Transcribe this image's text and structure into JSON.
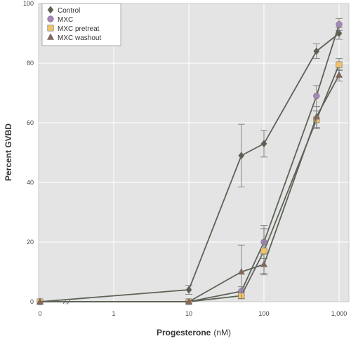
{
  "chart_data": {
    "type": "line",
    "xlabel": "Progesterone",
    "xlabel_unit": "(nM)",
    "ylabel": "Percent GVBD",
    "x_scale": "log",
    "x_axis_break": true,
    "xlim": [
      1,
      1000
    ],
    "ylim": [
      0,
      100
    ],
    "grid": true,
    "legend_position": "top-left",
    "x_ticks": [
      {
        "value": 0,
        "label": "0"
      },
      {
        "value": 1,
        "label": "1"
      },
      {
        "value": 10,
        "label": "10"
      },
      {
        "value": 100,
        "label": "100"
      },
      {
        "value": 1000,
        "label": "1,000"
      }
    ],
    "y_ticks": [
      {
        "value": 0,
        "label": "0"
      },
      {
        "value": 20,
        "label": "20"
      },
      {
        "value": 40,
        "label": "40"
      },
      {
        "value": 60,
        "label": "60"
      },
      {
        "value": 80,
        "label": "80"
      },
      {
        "value": 100,
        "label": "100"
      }
    ],
    "series": [
      {
        "name": "Control",
        "marker": "diamond",
        "color": "#5a6152",
        "points": [
          {
            "x": 0,
            "y": 0
          },
          {
            "x": 10,
            "y": 4,
            "err": 1.5
          },
          {
            "x": 50,
            "y": 49,
            "err": 10.5
          },
          {
            "x": 100,
            "y": 53,
            "err": 4.5
          },
          {
            "x": 500,
            "y": 84,
            "err": 2.5
          },
          {
            "x": 1000,
            "y": 90,
            "err": 2
          }
        ]
      },
      {
        "name": "MXC",
        "marker": "circle",
        "color": "#a587bb",
        "points": [
          {
            "x": 0,
            "y": 0
          },
          {
            "x": 10,
            "y": 0
          },
          {
            "x": 50,
            "y": 3.5,
            "err": 1.5
          },
          {
            "x": 100,
            "y": 20,
            "err": 5.5
          },
          {
            "x": 500,
            "y": 69,
            "err": 3.5
          },
          {
            "x": 1000,
            "y": 93,
            "err": 2
          }
        ]
      },
      {
        "name": "MXC pretreat",
        "marker": "square",
        "color": "#f2c46a",
        "points": [
          {
            "x": 0,
            "y": 0
          },
          {
            "x": 10,
            "y": 0
          },
          {
            "x": 50,
            "y": 2,
            "err": 1
          },
          {
            "x": 100,
            "y": 17,
            "err": 7.5
          },
          {
            "x": 500,
            "y": 61,
            "err": 3
          },
          {
            "x": 1000,
            "y": 79.5,
            "err": 2
          }
        ]
      },
      {
        "name": "MXC washout",
        "marker": "triangle",
        "color": "#8a6659",
        "points": [
          {
            "x": 0,
            "y": 0
          },
          {
            "x": 10,
            "y": 0
          },
          {
            "x": 50,
            "y": 10,
            "err": 9
          },
          {
            "x": 100,
            "y": 12.5,
            "err": 3.5
          },
          {
            "x": 500,
            "y": 62,
            "err": 3.5
          },
          {
            "x": 1000,
            "y": 76,
            "err": 2
          }
        ]
      }
    ]
  }
}
